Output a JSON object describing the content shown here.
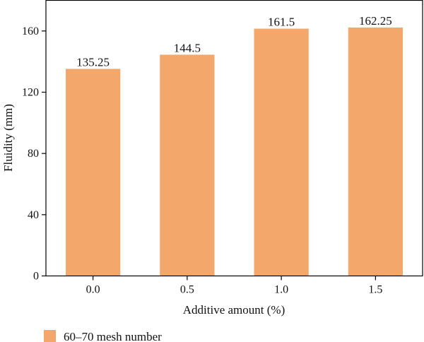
{
  "chart_data": {
    "type": "bar",
    "categories": [
      "0.0",
      "0.5",
      "1.0",
      "1.5"
    ],
    "series": [
      {
        "name": "60–70 mesh number",
        "values": [
          135.25,
          144.5,
          161.5,
          162.25
        ],
        "data_labels": [
          "135.25",
          "144.5",
          "161.5",
          "162.25"
        ]
      }
    ],
    "xlabel": "Additive amount (%)",
    "ylabel": "Fluidity (mm)",
    "ylim": [
      0,
      180
    ],
    "yticks": [
      0,
      40,
      80,
      120,
      160
    ],
    "ytick_labels": [
      "0",
      "40",
      "80",
      "120",
      "160"
    ],
    "grid": false,
    "legend_position": "bottom-left",
    "bar_color": "#F4A76A"
  }
}
